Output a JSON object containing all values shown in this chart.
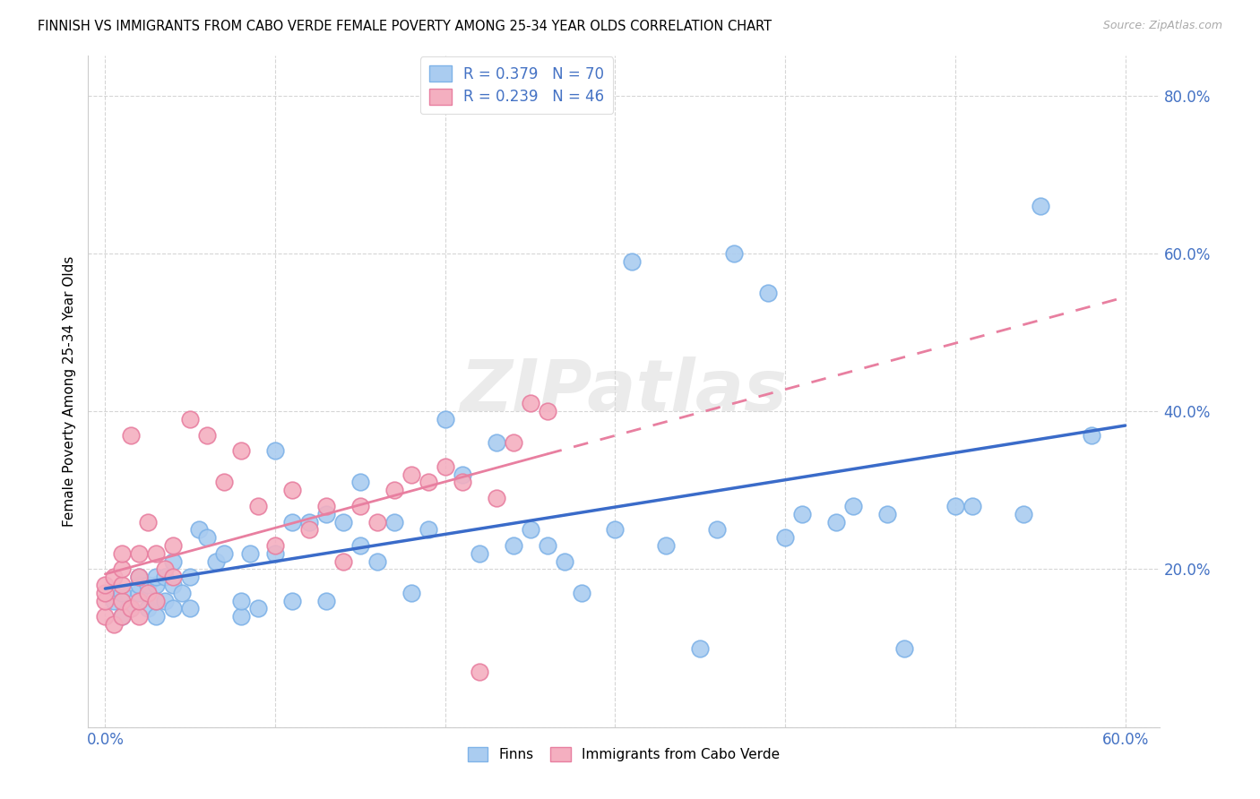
{
  "title": "FINNISH VS IMMIGRANTS FROM CABO VERDE FEMALE POVERTY AMONG 25-34 YEAR OLDS CORRELATION CHART",
  "source": "Source: ZipAtlas.com",
  "ylabel": "Female Poverty Among 25-34 Year Olds",
  "xlim": [
    0.0,
    0.62
  ],
  "ylim": [
    0.0,
    0.85
  ],
  "x_ticks": [
    0.0,
    0.1,
    0.2,
    0.3,
    0.4,
    0.5,
    0.6
  ],
  "y_ticks": [
    0.0,
    0.2,
    0.4,
    0.6,
    0.8
  ],
  "finns_color": "#aaccf0",
  "cabo_color": "#f4afc0",
  "finns_edge_color": "#7fb3e8",
  "cabo_edge_color": "#e87fa0",
  "finns_line_color": "#3a6bc9",
  "cabo_line_color": "#e87fa0",
  "R_finns": 0.379,
  "N_finns": 70,
  "R_cabo": 0.239,
  "N_cabo": 46,
  "legend_label_finns": "Finns",
  "legend_label_cabo": "Immigrants from Cabo Verde",
  "watermark": "ZIPatlas",
  "finns_x": [
    0.005,
    0.01,
    0.01,
    0.015,
    0.02,
    0.02,
    0.02,
    0.025,
    0.025,
    0.03,
    0.03,
    0.03,
    0.03,
    0.035,
    0.035,
    0.04,
    0.04,
    0.04,
    0.045,
    0.05,
    0.05,
    0.055,
    0.06,
    0.065,
    0.07,
    0.08,
    0.08,
    0.085,
    0.09,
    0.1,
    0.1,
    0.11,
    0.11,
    0.12,
    0.13,
    0.13,
    0.14,
    0.15,
    0.15,
    0.16,
    0.17,
    0.18,
    0.19,
    0.2,
    0.21,
    0.22,
    0.23,
    0.24,
    0.25,
    0.26,
    0.27,
    0.28,
    0.3,
    0.31,
    0.33,
    0.35,
    0.36,
    0.37,
    0.39,
    0.4,
    0.41,
    0.43,
    0.44,
    0.46,
    0.47,
    0.5,
    0.51,
    0.54,
    0.55,
    0.58
  ],
  "finns_y": [
    0.16,
    0.14,
    0.17,
    0.15,
    0.17,
    0.18,
    0.19,
    0.15,
    0.18,
    0.14,
    0.16,
    0.18,
    0.19,
    0.16,
    0.19,
    0.15,
    0.18,
    0.21,
    0.17,
    0.15,
    0.19,
    0.25,
    0.24,
    0.21,
    0.22,
    0.14,
    0.16,
    0.22,
    0.15,
    0.22,
    0.35,
    0.16,
    0.26,
    0.26,
    0.16,
    0.27,
    0.26,
    0.23,
    0.31,
    0.21,
    0.26,
    0.17,
    0.25,
    0.39,
    0.32,
    0.22,
    0.36,
    0.23,
    0.25,
    0.23,
    0.21,
    0.17,
    0.25,
    0.59,
    0.23,
    0.1,
    0.25,
    0.6,
    0.55,
    0.24,
    0.27,
    0.26,
    0.28,
    0.27,
    0.1,
    0.28,
    0.28,
    0.27,
    0.66,
    0.37
  ],
  "cabo_x": [
    0.0,
    0.0,
    0.0,
    0.0,
    0.005,
    0.005,
    0.01,
    0.01,
    0.01,
    0.01,
    0.01,
    0.015,
    0.015,
    0.02,
    0.02,
    0.02,
    0.02,
    0.025,
    0.025,
    0.03,
    0.03,
    0.035,
    0.04,
    0.04,
    0.05,
    0.06,
    0.07,
    0.08,
    0.09,
    0.1,
    0.11,
    0.12,
    0.13,
    0.14,
    0.15,
    0.16,
    0.17,
    0.18,
    0.19,
    0.2,
    0.21,
    0.22,
    0.23,
    0.24,
    0.25,
    0.26
  ],
  "cabo_y": [
    0.14,
    0.16,
    0.17,
    0.18,
    0.13,
    0.19,
    0.14,
    0.16,
    0.18,
    0.2,
    0.22,
    0.15,
    0.37,
    0.14,
    0.16,
    0.19,
    0.22,
    0.17,
    0.26,
    0.16,
    0.22,
    0.2,
    0.19,
    0.23,
    0.39,
    0.37,
    0.31,
    0.35,
    0.28,
    0.23,
    0.3,
    0.25,
    0.28,
    0.21,
    0.28,
    0.26,
    0.3,
    0.32,
    0.31,
    0.33,
    0.31,
    0.07,
    0.29,
    0.36,
    0.41,
    0.4
  ]
}
